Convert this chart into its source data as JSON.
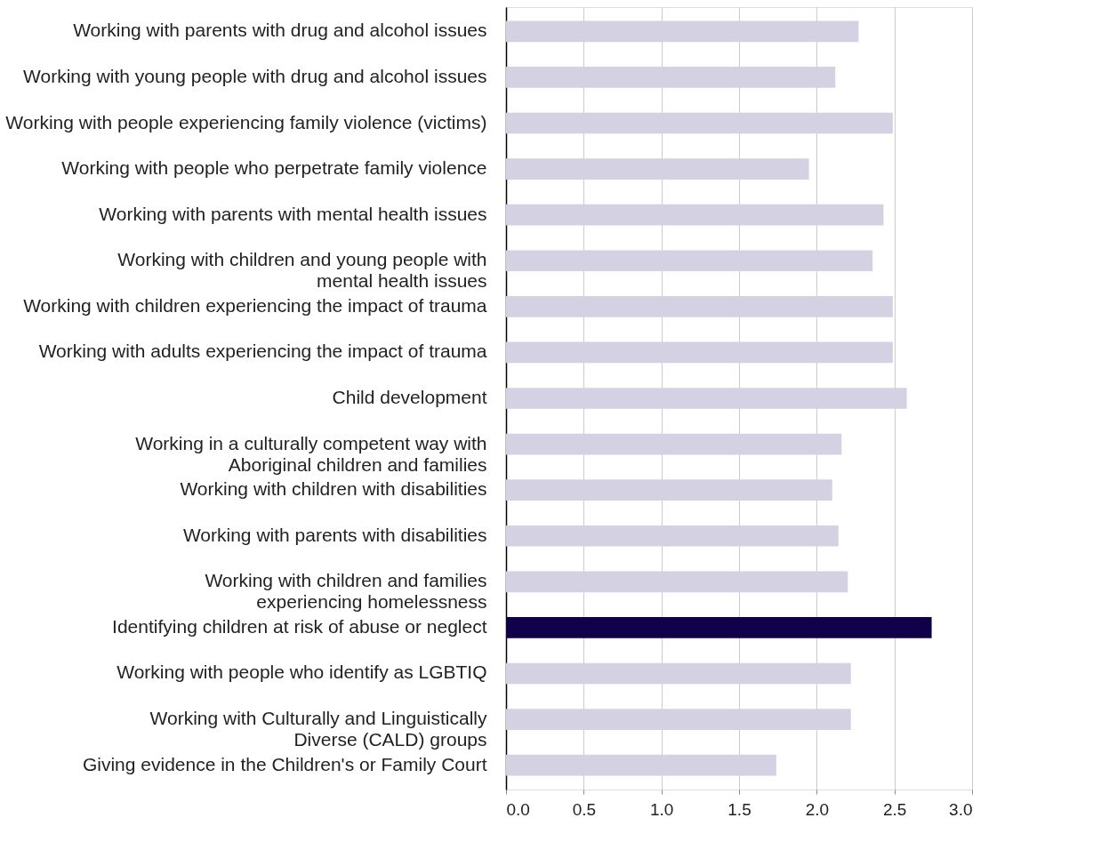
{
  "chart_data": {
    "type": "bar",
    "orientation": "horizontal",
    "categories": [
      "Working with parents with drug and alcohol issues",
      "Working with young people with drug and alcohol issues",
      "Working with people experiencing family violence (victims)",
      "Working with people who perpetrate family violence",
      "Working with parents with mental health issues",
      "Working with children and young people with mental health issues",
      "Working with children experiencing the impact of trauma",
      "Working with adults experiencing the impact of trauma",
      "Child development",
      "Working in a culturally competent way with Aboriginal children and families",
      "Working with children with disabilities",
      "Working with parents with disabilities",
      "Working with children and families experiencing homelessness",
      "Identifying children at risk of abuse or neglect",
      "Working with people who identify as LGBTIQ",
      "Working with Culturally and Linguistically Diverse (CALD) groups",
      "Giving evidence in the Children's or Family Court"
    ],
    "values": [
      2.27,
      2.12,
      2.49,
      1.95,
      2.43,
      2.36,
      2.49,
      2.49,
      2.58,
      2.16,
      2.1,
      2.14,
      2.2,
      2.74,
      2.22,
      2.22,
      1.74
    ],
    "colors": [
      "#d4d2e2",
      "#d4d2e2",
      "#d4d2e2",
      "#d4d2e2",
      "#d4d2e2",
      "#d4d2e2",
      "#d4d2e2",
      "#d4d2e2",
      "#d4d2e2",
      "#d4d2e2",
      "#d4d2e2",
      "#d4d2e2",
      "#d4d2e2",
      "#10004a",
      "#d4d2e2",
      "#d4d2e2",
      "#d4d2e2"
    ],
    "xlim": [
      0,
      3
    ],
    "xticks": [
      {
        "value": 0,
        "label": "0.0"
      },
      0.5,
      {
        "value": 1,
        "label": "1.0"
      },
      1.5,
      {
        "value": 2,
        "label": "2.0"
      },
      2.5,
      {
        "value": 3,
        "label": "3.0"
      }
    ],
    "grid": "x"
  }
}
